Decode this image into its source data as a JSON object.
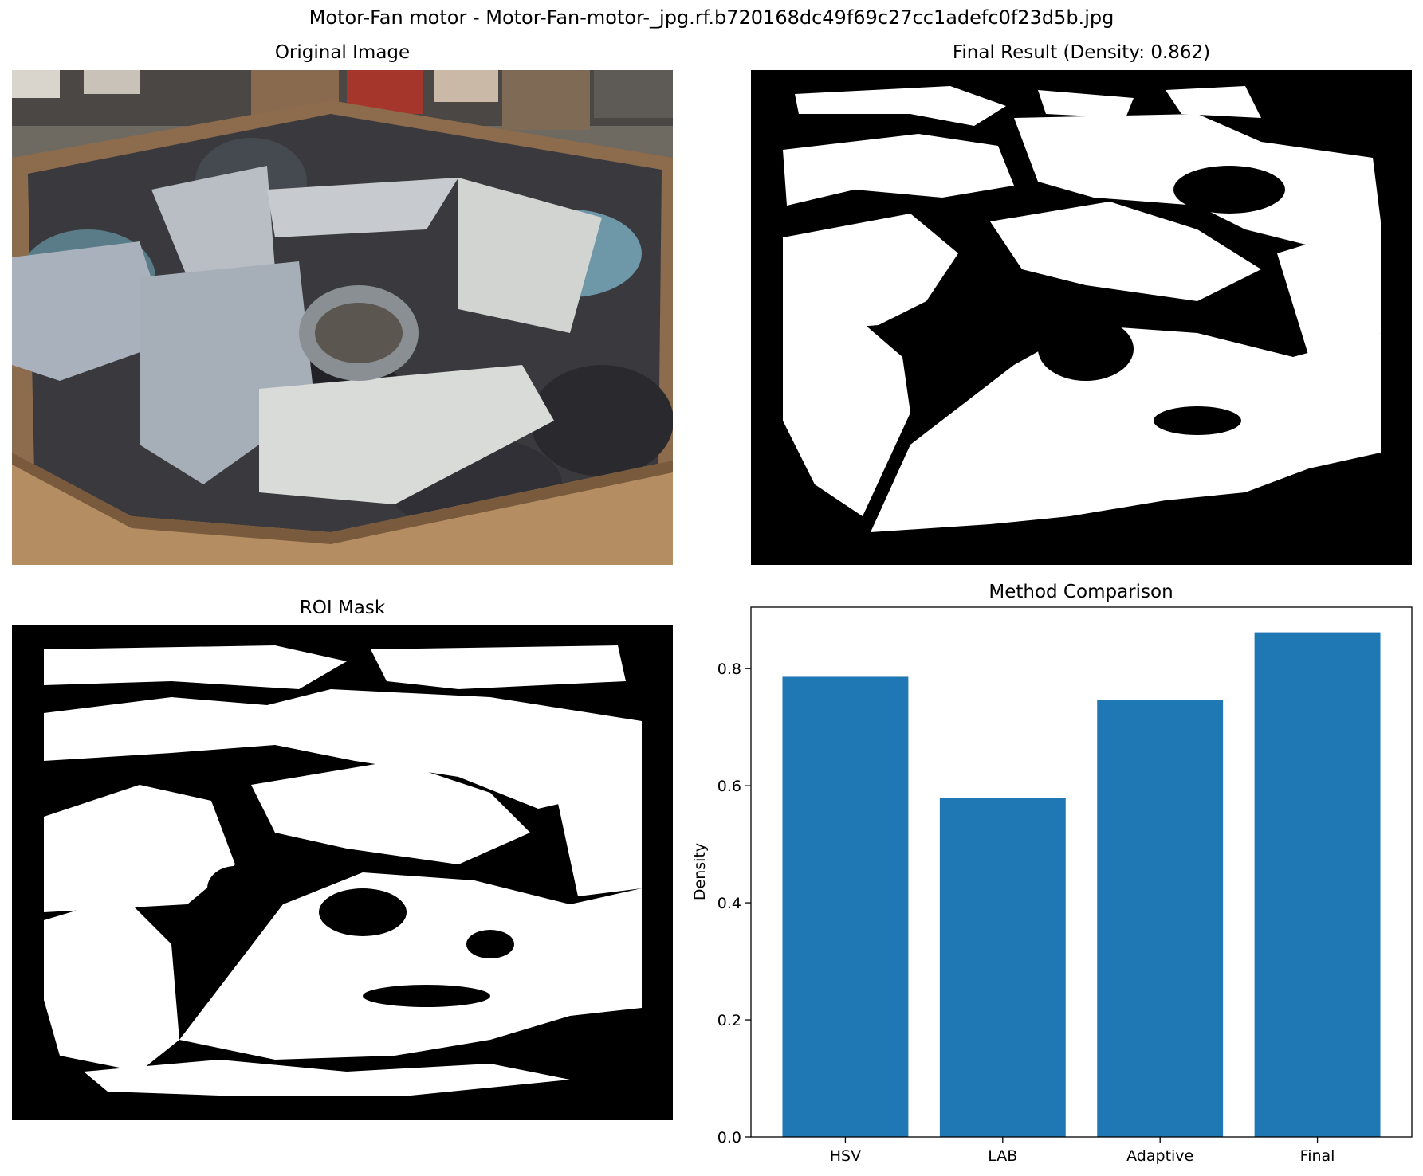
{
  "figure": {
    "suptitle": "Motor-Fan motor - Motor-Fan-motor-_jpg.rf.b720168dc49f69c27cc1adefc0f23d5b.jpg"
  },
  "panels": {
    "original": {
      "title": "Original Image"
    },
    "final": {
      "title": "Final Result (Density: 0.862)"
    },
    "roi": {
      "title": "ROI Mask"
    },
    "comparison": {
      "title": "Method Comparison"
    }
  },
  "colors": {
    "bar": "#1f77b4",
    "mask_fg": "#ffffff",
    "mask_bg": "#000000"
  },
  "chart_data": {
    "type": "bar",
    "title": "Method Comparison",
    "categories": [
      "HSV",
      "LAB",
      "Adaptive",
      "Final"
    ],
    "values": [
      0.786,
      0.579,
      0.746,
      0.862
    ],
    "xlabel": "",
    "ylabel": "Density",
    "ylim": [
      0,
      0.905
    ],
    "yticks": [
      0.0,
      0.2,
      0.4,
      0.6,
      0.8
    ],
    "ytick_labels": [
      "0.0",
      "0.2",
      "0.4",
      "0.6",
      "0.8"
    ],
    "grid": false,
    "legend": "none"
  }
}
